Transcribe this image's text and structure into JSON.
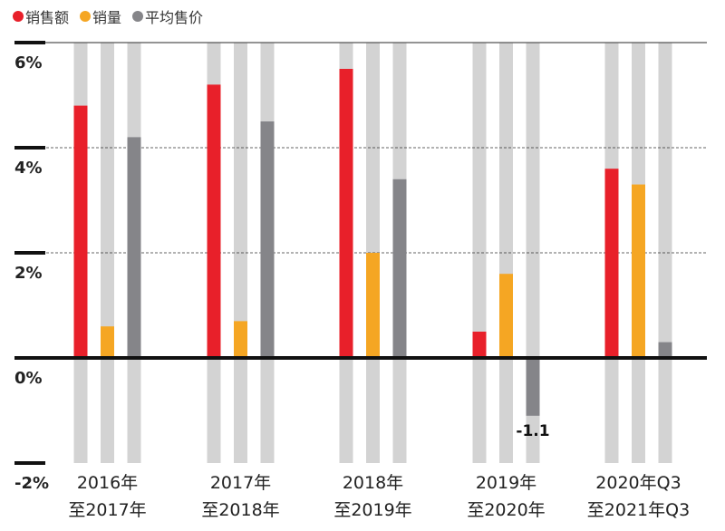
{
  "chart_data": {
    "type": "bar",
    "categories": [
      [
        "2016年",
        "至2017年"
      ],
      [
        "2017年",
        "至2018年"
      ],
      [
        "2018年",
        "至2019年"
      ],
      [
        "2019年",
        "至2020年"
      ],
      [
        "2020年Q3",
        "至2021年Q3"
      ]
    ],
    "series": [
      {
        "name": "销售额",
        "color": "#e8202a",
        "values": [
          4.8,
          5.2,
          5.5,
          0.5,
          3.6
        ]
      },
      {
        "name": "销量",
        "color": "#f5a623",
        "values": [
          0.6,
          0.7,
          2.0,
          1.6,
          3.3
        ]
      },
      {
        "name": "平均售价",
        "color": "#858589",
        "values": [
          4.2,
          4.5,
          3.4,
          -1.1,
          0.3
        ]
      }
    ],
    "yticks": [
      6,
      4,
      2,
      0,
      -2
    ],
    "ytick_labels": [
      "6%",
      "4%",
      "2%",
      "0%",
      "-2%"
    ],
    "ylim": [
      -2,
      6
    ],
    "annotations": [
      {
        "category_index": 3,
        "series_index": 2,
        "text": "-1.1"
      }
    ],
    "legend": "top-left",
    "grid": true
  }
}
